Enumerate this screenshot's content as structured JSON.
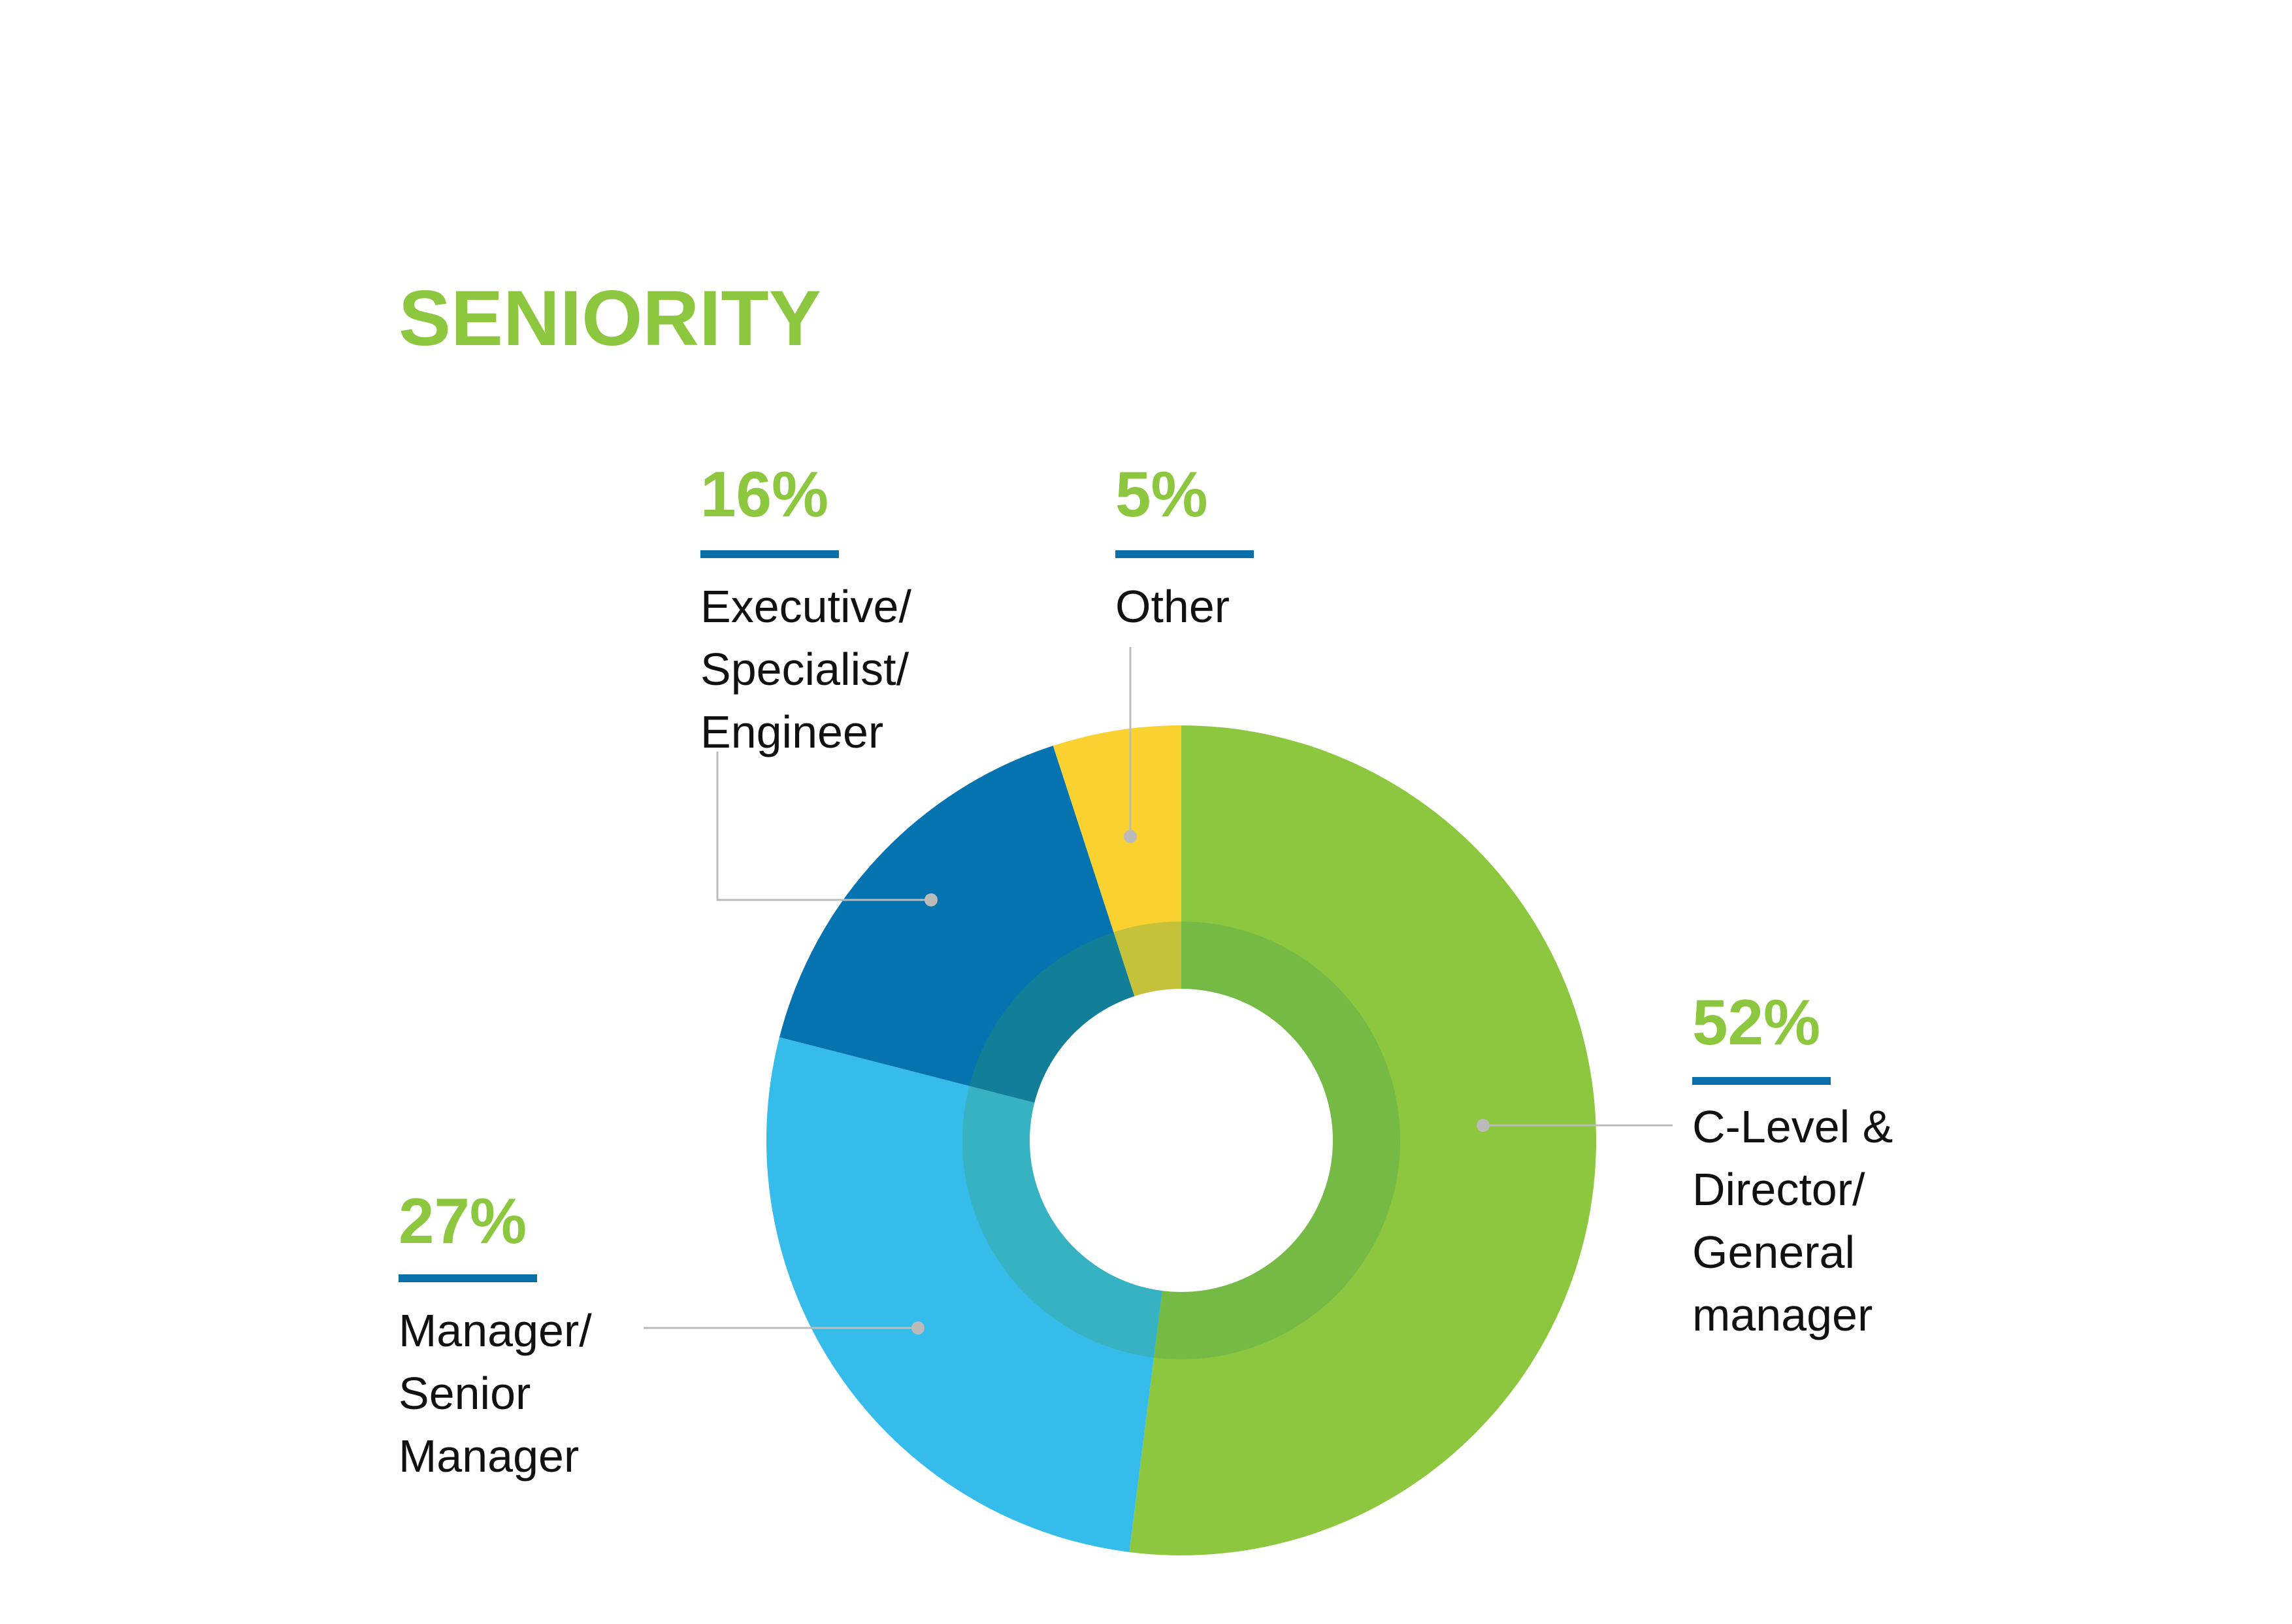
{
  "chart_data": {
    "type": "pie",
    "variant": "donut",
    "title": "SENIORITY",
    "slices": [
      {
        "percent_label": "52%",
        "value": 52,
        "label_lines": [
          "C-Level &",
          "Director/",
          "General",
          "manager"
        ],
        "color": "#8DC63F"
      },
      {
        "percent_label": "27%",
        "value": 27,
        "label_lines": [
          "Manager/",
          "Senior",
          "Manager"
        ],
        "color": "#35BCEA"
      },
      {
        "percent_label": "16%",
        "value": 16,
        "label_lines": [
          "Executive/",
          "Specialist/",
          "Engineer"
        ],
        "color": "#0473B0"
      },
      {
        "percent_label": "5%",
        "value": 5,
        "label_lines": [
          "Other"
        ],
        "color": "#F9D130"
      }
    ],
    "legend": "none"
  },
  "colors": {
    "title": "#8DC63F",
    "percent_text": "#8DC63F",
    "underline": "#0A6EA8",
    "leader_line": "#BBBBBB",
    "inner_ring_overlay": "#3E9A5A"
  }
}
